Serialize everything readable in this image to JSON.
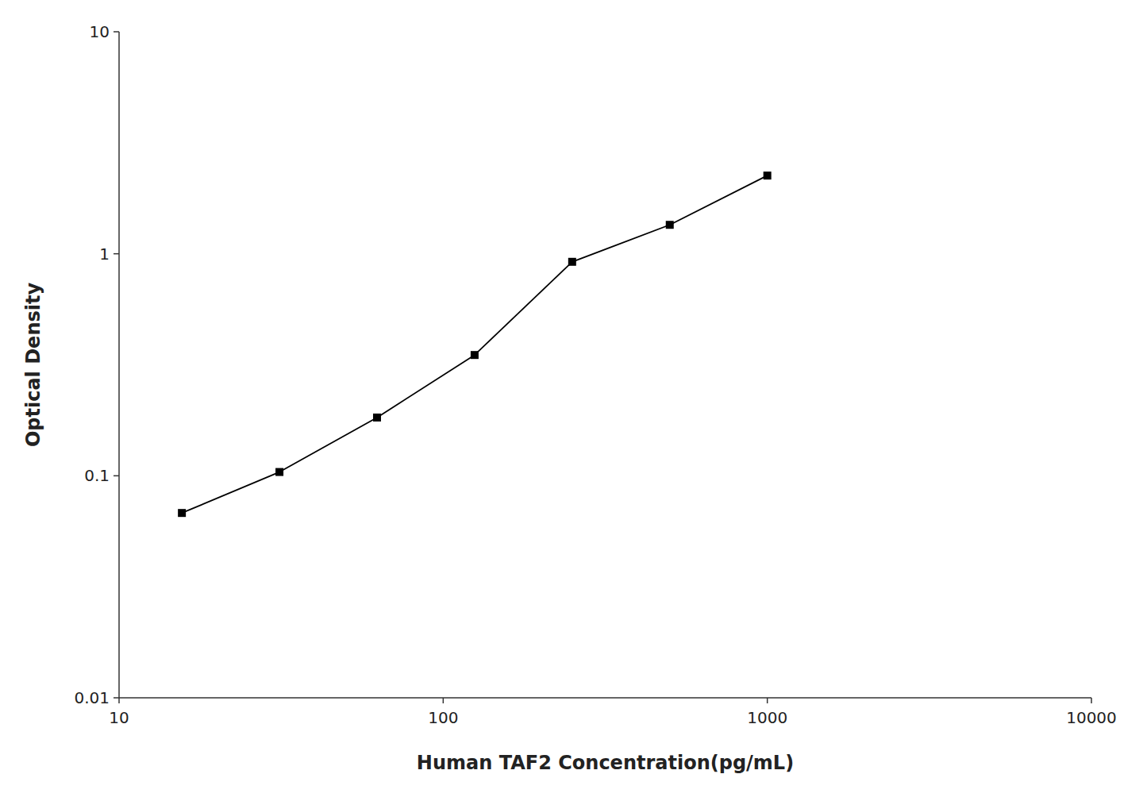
{
  "chart_data": {
    "type": "line",
    "x": [
      15.625,
      31.25,
      62.5,
      125,
      250,
      500,
      1000
    ],
    "values": [
      0.068,
      0.104,
      0.183,
      0.35,
      0.92,
      1.35,
      2.25
    ],
    "x_label": "Human TAF2 Concentration(pg/mL)",
    "y_label": "Optical Density",
    "xlim": [
      10,
      10000
    ],
    "ylim": [
      0.01,
      10
    ],
    "xticks": [
      10,
      100,
      1000,
      10000
    ],
    "yticks": [
      0.01,
      0.1,
      1,
      10
    ],
    "log": true,
    "grid": false,
    "color": "#000000",
    "marker": "square"
  }
}
